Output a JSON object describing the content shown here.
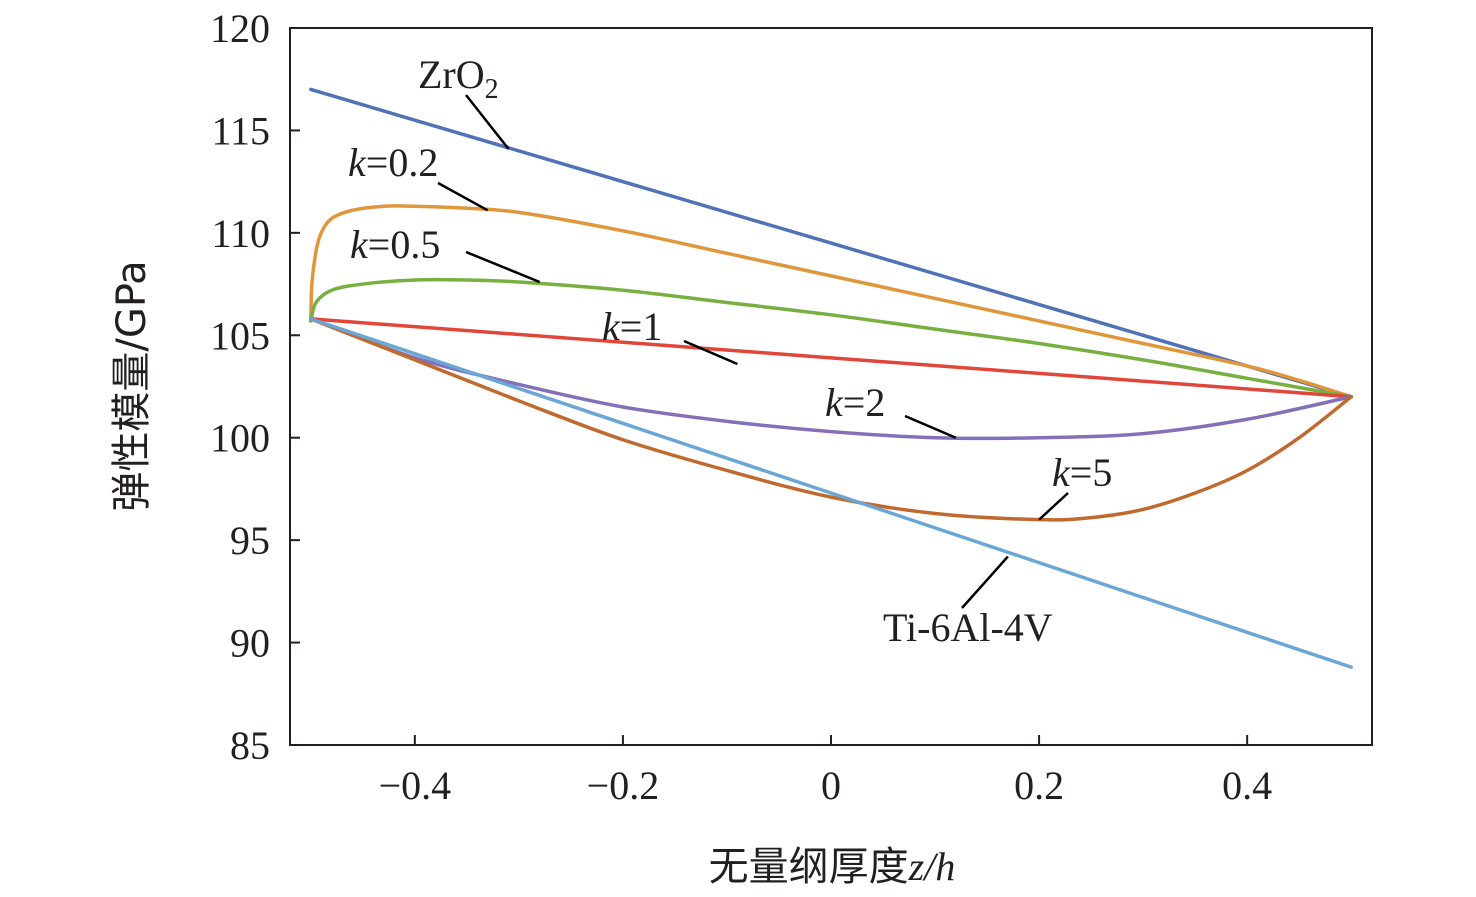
{
  "chart_data": {
    "type": "line",
    "xlabel_text": "无量纲厚度",
    "xlabel_var": "z/h",
    "ylabel": "弹性模量/GPa",
    "xlim": [
      -0.52,
      0.52
    ],
    "ylim": [
      85,
      120
    ],
    "xticks": [
      -0.4,
      -0.2,
      0,
      0.2,
      0.4
    ],
    "xtick_labels": [
      "−0.4",
      "−0.2",
      "0",
      "0.2",
      "0.4"
    ],
    "yticks": [
      85,
      90,
      95,
      100,
      105,
      110,
      115,
      120
    ],
    "ytick_labels": [
      "85",
      "90",
      "95",
      "100",
      "105",
      "110",
      "115",
      "120"
    ],
    "grid": false,
    "legend": "none",
    "series": [
      {
        "name": "ZrO2",
        "label_main": "ZrO",
        "label_sub": "2",
        "color": "#4f72b8",
        "x": [
          -0.5,
          0.5
        ],
        "values": [
          117.0,
          102.0
        ]
      },
      {
        "name": "k=0.2",
        "label_k": "k",
        "label_rest": "=0.2",
        "color": "#e0963a",
        "x": [
          -0.5,
          -0.499,
          -0.495,
          -0.49,
          -0.48,
          -0.46,
          -0.43,
          -0.4,
          -0.35,
          -0.3,
          -0.2,
          -0.1,
          0.0,
          0.1,
          0.2,
          0.3,
          0.4,
          0.45,
          0.5
        ],
        "values": [
          105.7,
          107.5,
          109.1,
          110.0,
          110.7,
          111.1,
          111.3,
          111.3,
          111.2,
          111.0,
          110.1,
          109.0,
          107.9,
          106.8,
          105.7,
          104.6,
          103.5,
          102.8,
          102.0
        ]
      },
      {
        "name": "k=0.5",
        "label_k": "k",
        "label_rest": "=0.5",
        "color": "#77b041",
        "x": [
          -0.5,
          -0.495,
          -0.48,
          -0.45,
          -0.4,
          -0.35,
          -0.3,
          -0.2,
          -0.1,
          0.0,
          0.1,
          0.2,
          0.3,
          0.4,
          0.5
        ],
        "values": [
          105.7,
          106.6,
          107.2,
          107.5,
          107.7,
          107.7,
          107.6,
          107.2,
          106.6,
          106.0,
          105.3,
          104.6,
          103.8,
          102.9,
          102.0
        ]
      },
      {
        "name": "k=1",
        "label_k": "k",
        "label_rest": "=1",
        "color": "#e0463a",
        "x": [
          -0.5,
          0.5
        ],
        "values": [
          105.8,
          102.0
        ]
      },
      {
        "name": "k=2",
        "label_k": "k",
        "label_rest": "=2",
        "color": "#8470b8",
        "x": [
          -0.5,
          -0.4,
          -0.3,
          -0.2,
          -0.1,
          0.0,
          0.1,
          0.2,
          0.3,
          0.4,
          0.5
        ],
        "values": [
          105.8,
          103.9,
          102.6,
          101.5,
          100.8,
          100.3,
          100.0,
          100.0,
          100.2,
          100.9,
          102.0
        ]
      },
      {
        "name": "k=5",
        "label_k": "k",
        "label_rest": "=5",
        "color": "#c06a2f",
        "x": [
          -0.5,
          -0.4,
          -0.3,
          -0.2,
          -0.1,
          0.0,
          0.1,
          0.2,
          0.25,
          0.3,
          0.35,
          0.4,
          0.45,
          0.5
        ],
        "values": [
          105.8,
          103.8,
          101.8,
          99.9,
          98.4,
          97.1,
          96.3,
          96.0,
          96.1,
          96.5,
          97.3,
          98.4,
          100.0,
          102.0
        ]
      },
      {
        "name": "Ti-6Al-4V",
        "label_main": "Ti-6Al-4V",
        "color": "#6aa6d6",
        "x": [
          -0.5,
          0.5
        ],
        "values": [
          105.8,
          88.8
        ]
      }
    ],
    "annotations": [
      {
        "series": "ZrO2",
        "point": [
          -0.31,
          114.1
        ]
      },
      {
        "series": "k=0.2",
        "point": [
          -0.33,
          111.1
        ]
      },
      {
        "series": "k=0.5",
        "point": [
          -0.28,
          107.6
        ]
      },
      {
        "series": "k=1",
        "point": [
          -0.09,
          103.6
        ]
      },
      {
        "series": "k=2",
        "point": [
          0.12,
          100.0
        ]
      },
      {
        "series": "k=5",
        "point": [
          0.2,
          96.0
        ]
      },
      {
        "series": "Ti-6Al-4V",
        "point": [
          0.17,
          94.2
        ]
      }
    ]
  }
}
